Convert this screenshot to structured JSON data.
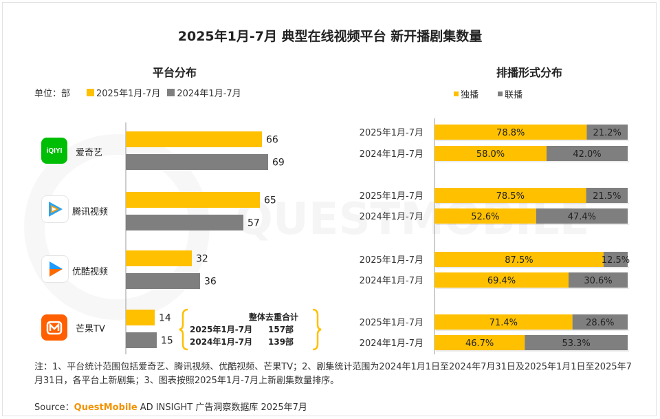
{
  "title": "2025年1月-7月 典型在线视频平台 新开播剧集数量",
  "left_panel": {
    "title": "平台分布",
    "unit_label": "单位：部",
    "legend": [
      "2025年1月-7月",
      "2024年1月-7月"
    ]
  },
  "right_panel": {
    "title": "排播形式分布",
    "legend": [
      "独播",
      "联播"
    ]
  },
  "platforms": [
    {
      "name": "爱奇艺",
      "icon": "iqiyi-logo",
      "logo_text": "iQIYI"
    },
    {
      "name": "腾讯视频",
      "icon": "tencent-video-logo"
    },
    {
      "name": "优酷视频",
      "icon": "youku-logo"
    },
    {
      "name": "芒果TV",
      "icon": "mango-tv-logo"
    }
  ],
  "summary": {
    "title": "整体去重合计",
    "rows": [
      {
        "period": "2025年1月-7月",
        "value": "157部"
      },
      {
        "period": "2024年1月-7月",
        "value": "139部"
      }
    ]
  },
  "chart_data": [
    {
      "type": "bar",
      "title": "平台分布",
      "orientation": "horizontal",
      "categories": [
        "爱奇艺",
        "腾讯视频",
        "优酷视频",
        "芒果TV"
      ],
      "series": [
        {
          "name": "2025年1月-7月",
          "color": "#ffc000",
          "values": [
            66,
            65,
            32,
            14
          ]
        },
        {
          "name": "2024年1月-7月",
          "color": "#7f7f7f",
          "values": [
            69,
            57,
            36,
            15
          ]
        }
      ],
      "xlim": [
        0,
        75
      ]
    },
    {
      "type": "bar",
      "title": "排播形式分布",
      "orientation": "horizontal",
      "stacked": "percent",
      "rows": [
        {
          "platform": "爱奇艺",
          "period": "2025年1月-7月",
          "exclusive": 78.8,
          "joint": 21.2,
          "exclusive_label": "78.8%",
          "joint_label": "21.2%"
        },
        {
          "platform": "爱奇艺",
          "period": "2024年1月-7月",
          "exclusive": 58.0,
          "joint": 42.0,
          "exclusive_label": "58.0%",
          "joint_label": "42.0%"
        },
        {
          "platform": "腾讯视频",
          "period": "2025年1月-7月",
          "exclusive": 78.5,
          "joint": 21.5,
          "exclusive_label": "78.5%",
          "joint_label": "21.5%"
        },
        {
          "platform": "腾讯视频",
          "period": "2024年1月-7月",
          "exclusive": 52.6,
          "joint": 47.4,
          "exclusive_label": "52.6%",
          "joint_label": "47.4%"
        },
        {
          "platform": "优酷视频",
          "period": "2025年1月-7月",
          "exclusive": 87.5,
          "joint": 12.5,
          "exclusive_label": "87.5%",
          "joint_label": "12.5%"
        },
        {
          "platform": "优酷视频",
          "period": "2024年1月-7月",
          "exclusive": 69.4,
          "joint": 30.6,
          "exclusive_label": "69.4%",
          "joint_label": "30.6%"
        },
        {
          "platform": "芒果TV",
          "period": "2025年1月-7月",
          "exclusive": 71.4,
          "joint": 28.6,
          "exclusive_label": "71.4%",
          "joint_label": "28.6%"
        },
        {
          "platform": "芒果TV",
          "period": "2024年1月-7月",
          "exclusive": 46.7,
          "joint": 53.3,
          "exclusive_label": "46.7%",
          "joint_label": "53.3%"
        }
      ],
      "series": [
        {
          "name": "独播",
          "color": "#ffc000"
        },
        {
          "name": "联播",
          "color": "#7f7f7f"
        }
      ]
    }
  ],
  "note": "注：1、平台统计范围包括爱奇艺、腾讯视频、优酷视频、芒果TV；2、剧集统计范围为2024年1月1日至2024年7月31日及2025年1月1日至2025年7月31日，各平台上新剧集；3、图表按照2025年1月-7月上新剧集数量排序。",
  "source": {
    "prefix": "Source：",
    "brand": "QuestMobile",
    "rest": " AD INSIGHT 广告洞察数据库 2025年7月"
  },
  "watermark": "QUESTMOBILE",
  "colors": {
    "yellow": "#ffc000",
    "gray": "#7f7f7f",
    "iqiyi": "#00be06",
    "tencent": "#2aa3ef",
    "youku": "#1f9bff",
    "mango": "#ff5f00"
  }
}
